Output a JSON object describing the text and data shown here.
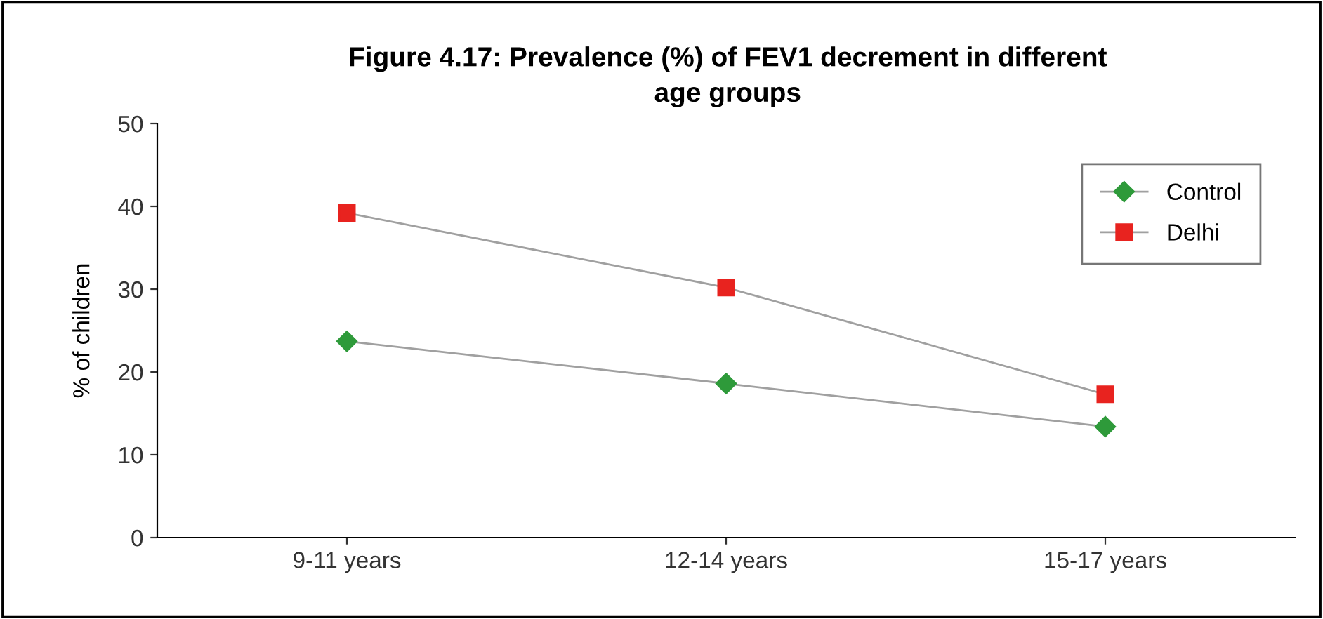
{
  "chart_data": {
    "type": "line",
    "title": "Figure 4.17: Prevalence (%) of FEV1 decrement in different\nage groups",
    "ylabel": "% of children",
    "categories": [
      "9-11 years",
      "12-14 years",
      "15-17 years"
    ],
    "series": [
      {
        "name": "Control",
        "color": "#2e9a3a",
        "values": [
          23.7,
          18.6,
          13.4
        ],
        "marker": "diamond"
      },
      {
        "name": "Delhi",
        "color": "#e8231f",
        "values": [
          39.2,
          30.2,
          17.3
        ],
        "marker": "square"
      }
    ],
    "ylim": [
      0,
      50
    ],
    "yticks": [
      0,
      10,
      20,
      30,
      40,
      50
    ],
    "grid": false,
    "legend": "top right"
  }
}
